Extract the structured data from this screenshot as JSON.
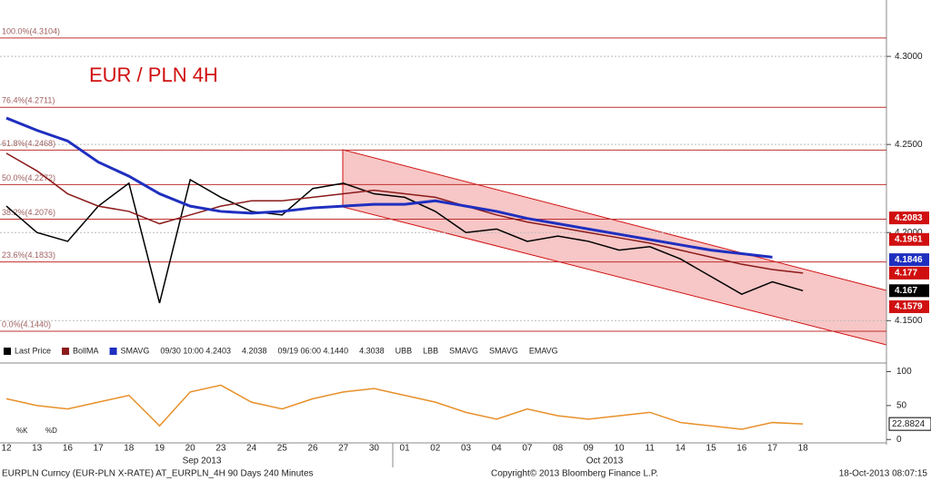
{
  "chart_data": {
    "type": "line",
    "title": "EUR / PLN 4H",
    "categories": [
      "12",
      "13",
      "16",
      "17",
      "18",
      "19",
      "20",
      "23",
      "24",
      "25",
      "26",
      "27",
      "30",
      "01",
      "02",
      "03",
      "04",
      "07",
      "08",
      "09",
      "10",
      "11",
      "14",
      "15",
      "16",
      "17",
      "18"
    ],
    "months": [
      "Sep 2013",
      "Oct 2013"
    ],
    "ylim": [
      4.128,
      4.332
    ],
    "yticks": [
      {
        "value": 4.3,
        "label": "4.3000"
      },
      {
        "value": 4.25,
        "label": "4.2500"
      },
      {
        "value": 4.2,
        "label": "4.2000"
      },
      {
        "value": 4.15,
        "label": "4.1500"
      }
    ],
    "series": [
      {
        "name": "Last Price",
        "color": "#000000",
        "values": [
          4.215,
          4.2,
          4.195,
          4.215,
          4.228,
          4.16,
          4.23,
          4.22,
          4.212,
          4.21,
          4.225,
          4.228,
          4.222,
          4.22,
          4.212,
          4.2,
          4.202,
          4.195,
          4.198,
          4.195,
          4.19,
          4.192,
          4.185,
          4.175,
          4.165,
          4.172,
          4.167
        ]
      },
      {
        "name": "BollMA",
        "color": "#8b1a1a",
        "values": [
          4.245,
          4.235,
          4.222,
          4.215,
          4.212,
          4.205,
          4.21,
          4.215,
          4.218,
          4.218,
          4.22,
          4.222,
          4.224,
          4.222,
          4.22,
          4.215,
          4.21,
          4.206,
          4.203,
          4.2,
          4.197,
          4.194,
          4.19,
          4.186,
          4.182,
          4.179,
          4.177
        ]
      },
      {
        "name": "SMAVG",
        "color": "#1f2fbf",
        "values": [
          4.265,
          4.258,
          4.252,
          4.24,
          4.232,
          4.222,
          4.215,
          4.212,
          4.211,
          4.212,
          4.214,
          4.215,
          4.216,
          4.216,
          4.218,
          4.215,
          4.212,
          4.208,
          4.205,
          4.202,
          4.199,
          4.196,
          4.193,
          4.19,
          4.188,
          4.186,
          null
        ]
      }
    ],
    "fib": [
      {
        "value": 4.3104,
        "label": "100.0%(4.3104)"
      },
      {
        "value": 4.2711,
        "label": "76.4%(4.2711)"
      },
      {
        "value": 4.2468,
        "label": "61.8%(4.2468)"
      },
      {
        "value": 4.2272,
        "label": "50.0%(4.2272)"
      },
      {
        "value": 4.2076,
        "label": "38.2%(4.2076)"
      },
      {
        "value": 4.1833,
        "label": "23.6%(4.1833)"
      },
      {
        "value": 4.144,
        "label": "0.0%(4.1440)"
      }
    ],
    "price_tags": [
      {
        "value": 4.2083,
        "color": "#d01010"
      },
      {
        "value": 4.1961,
        "color": "#d01010"
      },
      {
        "value": 4.1846,
        "color": "#1f2fbf"
      },
      {
        "value": 4.177,
        "color": "#d01010"
      },
      {
        "value": 4.167,
        "color": "#000000"
      },
      {
        "value": 4.1579,
        "color": "#d01010"
      }
    ],
    "legend_info": [
      "09/30 10:00 4.2403",
      "4.2038",
      "09/19 06:00 4.1440",
      "4.3038",
      "UBB",
      "LBB",
      "SMAVG",
      "SMAVG",
      "EMAVG"
    ],
    "oscillator": {
      "ylim": [
        -5,
        110
      ],
      "yticks": [
        100,
        50,
        0
      ],
      "name": "%K",
      "color": "#e8902a",
      "values": [
        60,
        50,
        45,
        55,
        65,
        20,
        70,
        80,
        55,
        45,
        60,
        70,
        75,
        65,
        55,
        40,
        30,
        45,
        35,
        30,
        35,
        40,
        25,
        20,
        15,
        25,
        22.8824
      ],
      "labels": [
        "%K",
        "%D"
      ]
    },
    "footer": {
      "left": "EURPLN Curncy (EUR-PLN X-RATE) AT_EURPLN_4H 90 Days 240 Minutes",
      "center": "Copyright© 2013 Bloomberg Finance L.P.",
      "right": "18-Oct-2013 08:07:15"
    }
  }
}
